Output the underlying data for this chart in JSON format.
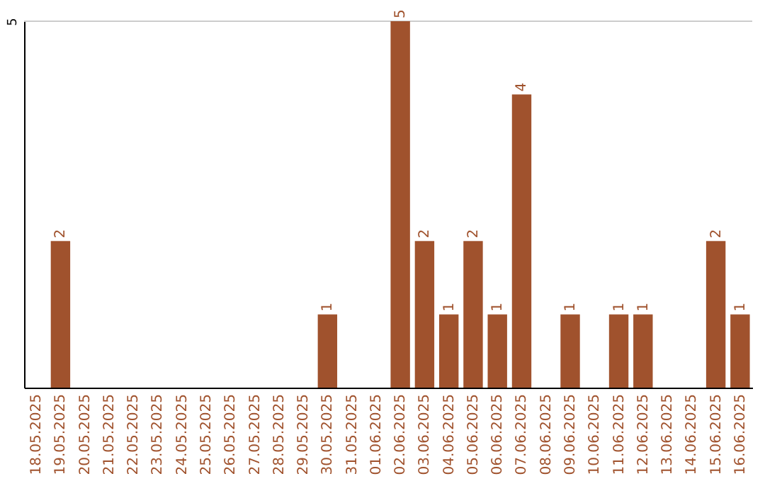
{
  "chart_data": {
    "type": "bar",
    "categories": [
      "18.05.2025",
      "19.05.2025",
      "20.05.2025",
      "21.05.2025",
      "22.05.2025",
      "23.05.2025",
      "24.05.2025",
      "25.05.2025",
      "26.05.2025",
      "27.05.2025",
      "28.05.2025",
      "29.05.2025",
      "30.05.2025",
      "31.05.2025",
      "01.06.2025",
      "02.06.2025",
      "03.06.2025",
      "04.06.2025",
      "05.06.2025",
      "06.06.2025",
      "07.06.2025",
      "08.06.2025",
      "09.06.2025",
      "10.06.2025",
      "11.06.2025",
      "12.06.2025",
      "13.06.2025",
      "14.06.2025",
      "15.06.2025",
      "16.06.2025"
    ],
    "values": [
      0,
      2,
      0,
      0,
      0,
      0,
      0,
      0,
      0,
      0,
      0,
      0,
      1,
      0,
      0,
      5,
      2,
      1,
      2,
      1,
      4,
      0,
      1,
      0,
      1,
      1,
      0,
      0,
      2,
      1
    ],
    "value_labels": [
      null,
      "2",
      null,
      null,
      null,
      null,
      null,
      null,
      null,
      null,
      null,
      null,
      "1",
      null,
      null,
      "5",
      "2",
      "1",
      "2",
      "1",
      "4",
      null,
      "1",
      null,
      "1",
      "1",
      null,
      null,
      "2",
      "1"
    ],
    "color": "#a0522d",
    "ylim": [
      0,
      5
    ],
    "yticks": [
      5
    ],
    "ref_lines": [
      {
        "axis": "y",
        "value": 5,
        "color": "#cccccc"
      }
    ]
  }
}
